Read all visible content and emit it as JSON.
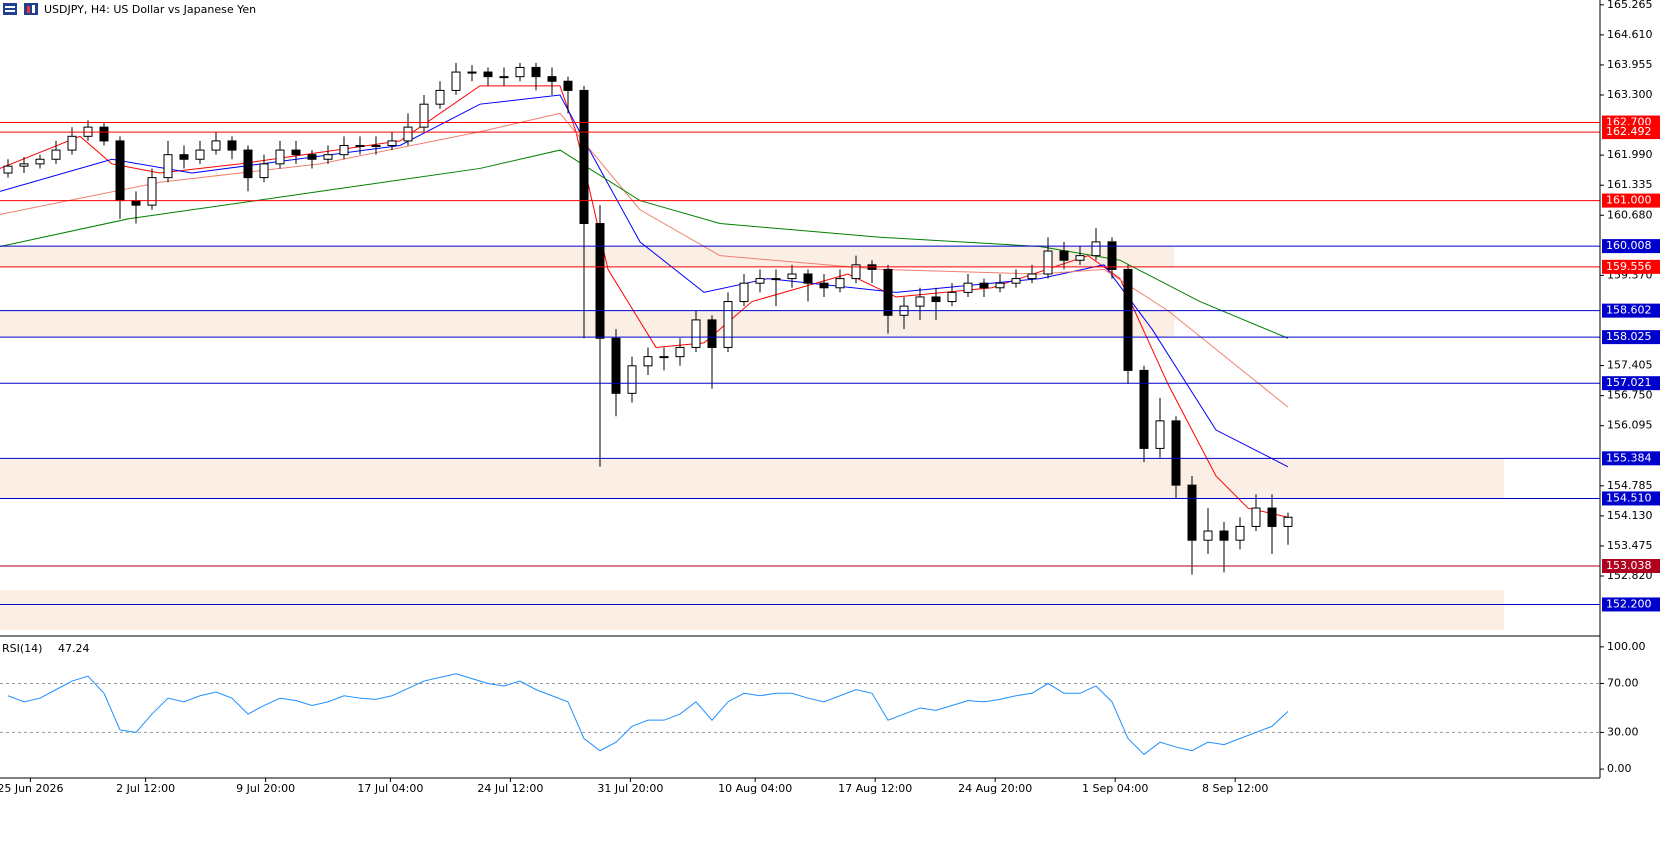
{
  "header": {
    "symbol_line": "USDJPY, H4:  US Dollar vs Japanese Yen"
  },
  "chart_data": [
    {
      "type": "candlestick",
      "open": [
        161.6,
        161.75,
        161.8,
        161.9,
        162.1,
        162.4,
        162.6,
        162.3,
        161.0,
        160.9,
        161.5,
        162.0,
        161.9,
        162.1,
        162.3,
        162.1,
        161.5,
        161.8,
        162.1,
        162.0,
        161.9,
        162.0,
        162.2,
        162.2,
        162.2,
        162.3,
        162.6,
        163.1,
        163.4,
        163.8,
        163.8,
        163.7,
        163.7,
        163.9,
        163.7,
        163.6,
        163.4,
        160.5,
        158.0,
        156.8,
        157.4,
        157.6,
        157.6,
        157.8,
        158.4,
        157.8,
        158.8,
        159.2,
        159.3,
        159.3,
        159.4,
        159.2,
        159.1,
        159.3,
        159.6,
        159.5,
        158.5,
        158.7,
        158.9,
        158.8,
        159.0,
        159.2,
        159.1,
        159.2,
        159.3,
        159.4,
        159.9,
        159.7,
        159.8,
        160.1,
        159.5,
        157.3,
        155.6,
        156.2,
        154.8,
        153.6,
        153.8,
        153.6,
        153.9,
        154.3,
        153.9
      ],
      "high": [
        161.9,
        161.95,
        162.0,
        162.3,
        162.6,
        162.75,
        162.7,
        162.4,
        161.2,
        161.7,
        162.3,
        162.2,
        162.3,
        162.5,
        162.4,
        162.2,
        162.0,
        162.3,
        162.3,
        162.1,
        162.2,
        162.4,
        162.4,
        162.4,
        162.5,
        162.9,
        163.3,
        163.6,
        164.0,
        163.95,
        163.9,
        163.9,
        164.0,
        164.0,
        163.9,
        163.7,
        163.5,
        160.9,
        158.2,
        157.6,
        157.8,
        157.8,
        158.0,
        158.6,
        158.5,
        159.0,
        159.4,
        159.5,
        159.5,
        159.6,
        159.5,
        159.4,
        159.5,
        159.8,
        159.7,
        159.6,
        158.9,
        159.1,
        159.1,
        159.2,
        159.4,
        159.3,
        159.4,
        159.5,
        159.6,
        160.2,
        160.1,
        160.0,
        160.4,
        160.2,
        159.6,
        157.4,
        156.7,
        156.3,
        155.0,
        154.3,
        154.0,
        154.1,
        154.6,
        154.6,
        154.2
      ],
      "low": [
        161.5,
        161.6,
        161.7,
        161.8,
        162.0,
        162.3,
        162.2,
        160.6,
        160.5,
        160.8,
        161.4,
        161.7,
        161.8,
        162.0,
        161.9,
        161.2,
        161.4,
        161.7,
        161.8,
        161.7,
        161.8,
        161.9,
        162.0,
        162.0,
        162.1,
        162.2,
        162.5,
        163.0,
        163.3,
        163.6,
        163.5,
        163.5,
        163.6,
        163.4,
        163.3,
        162.9,
        158.0,
        155.2,
        156.3,
        156.6,
        157.2,
        157.3,
        157.4,
        157.7,
        156.9,
        157.7,
        158.7,
        159.0,
        158.7,
        159.1,
        158.8,
        158.9,
        159.0,
        159.2,
        159.2,
        158.1,
        158.2,
        158.4,
        158.4,
        158.7,
        158.9,
        158.9,
        159.0,
        159.1,
        159.2,
        159.3,
        159.5,
        159.6,
        159.7,
        159.3,
        157.0,
        155.3,
        155.4,
        154.5,
        152.85,
        153.3,
        152.9,
        153.4,
        153.8,
        153.3,
        153.5
      ],
      "close": [
        161.75,
        161.8,
        161.9,
        162.1,
        162.4,
        162.6,
        162.3,
        161.0,
        160.9,
        161.5,
        162.0,
        161.9,
        162.1,
        162.3,
        162.1,
        161.5,
        161.8,
        162.1,
        162.0,
        161.9,
        162.0,
        162.2,
        162.2,
        162.2,
        162.3,
        162.6,
        163.1,
        163.4,
        163.8,
        163.8,
        163.7,
        163.7,
        163.9,
        163.7,
        163.6,
        163.4,
        160.5,
        158.0,
        156.8,
        157.4,
        157.6,
        157.6,
        157.8,
        158.4,
        157.8,
        158.8,
        159.2,
        159.3,
        159.3,
        159.4,
        159.2,
        159.1,
        159.3,
        159.6,
        159.5,
        158.5,
        158.7,
        158.9,
        158.8,
        159.0,
        159.2,
        159.1,
        159.2,
        159.3,
        159.4,
        159.9,
        159.7,
        159.8,
        160.1,
        159.5,
        157.3,
        155.6,
        156.2,
        154.8,
        153.6,
        153.8,
        153.6,
        153.9,
        154.3,
        153.9,
        154.1
      ],
      "xlim": [
        0,
        100
      ],
      "ylim": [
        151.6,
        165.37
      ],
      "xticks": [
        {
          "value": 1.9,
          "label": "25 Jun 2026"
        },
        {
          "value": 9.1,
          "label": "2 Jul 12:00"
        },
        {
          "value": 16.6,
          "label": "9 Jul 20:00"
        },
        {
          "value": 24.4,
          "label": "17 Jul 04:00"
        },
        {
          "value": 31.9,
          "label": "24 Jul 12:00"
        },
        {
          "value": 39.4,
          "label": "31 Jul 20:00"
        },
        {
          "value": 47.2,
          "label": "10 Aug 04:00"
        },
        {
          "value": 54.7,
          "label": "17 Aug 12:00"
        },
        {
          "value": 62.2,
          "label": "24 Aug 20:00"
        },
        {
          "value": 69.7,
          "label": "1 Sep 04:00"
        },
        {
          "value": 77.2,
          "label": "8 Sep 12:00"
        }
      ],
      "yticks": [
        165.265,
        {
          "value": 164.61,
          "label": "164.610"
        },
        163.955,
        {
          "value": 163.3,
          "label": "163.300"
        },
        {
          "value": 161.99,
          "label": "161.990"
        },
        161.335,
        {
          "value": 160.68,
          "label": "160.680"
        },
        {
          "value": 159.37,
          "label": "159.370"
        },
        157.405,
        {
          "value": 156.75,
          "label": "156.750"
        },
        156.095,
        154.785,
        {
          "value": 154.13,
          "label": "154.130"
        },
        153.475,
        {
          "value": 152.82,
          "label": "152.820"
        }
      ],
      "moving_averages": [
        {
          "color": "#ff0000",
          "x": [
            0,
            5,
            7,
            10,
            15,
            25,
            30,
            35,
            36,
            38,
            41,
            44,
            47,
            53,
            56,
            62,
            68,
            70,
            73,
            76,
            78,
            80.5
          ],
          "values": [
            161.7,
            162.4,
            161.8,
            161.6,
            161.8,
            162.3,
            163.5,
            163.5,
            162.5,
            159.5,
            157.8,
            157.9,
            158.8,
            159.4,
            158.9,
            159.1,
            159.8,
            159.3,
            157.0,
            155.0,
            154.3,
            154.1
          ]
        },
        {
          "color": "#0000ff",
          "x": [
            0,
            7,
            12,
            25,
            30,
            35,
            37,
            40,
            44,
            48,
            56,
            65,
            69,
            72,
            76,
            80.5
          ],
          "values": [
            161.2,
            161.9,
            161.6,
            162.2,
            163.1,
            163.3,
            162.0,
            160.1,
            159.0,
            159.3,
            159.0,
            159.3,
            159.6,
            158.2,
            156.0,
            155.2
          ]
        },
        {
          "color": "#f08070",
          "x": [
            0,
            10,
            20,
            30,
            35,
            40,
            45,
            55,
            65,
            69,
            73,
            80.5
          ],
          "values": [
            160.7,
            161.4,
            161.8,
            162.5,
            162.9,
            160.8,
            159.8,
            159.5,
            159.4,
            159.5,
            158.6,
            156.5
          ]
        },
        {
          "color": "#008000",
          "x": [
            0,
            8,
            20,
            30,
            35,
            40,
            45,
            55,
            65,
            70,
            75,
            80.5
          ],
          "values": [
            160.0,
            160.6,
            161.2,
            161.7,
            162.1,
            161.0,
            160.5,
            160.2,
            160.0,
            159.7,
            158.8,
            158.0
          ]
        }
      ],
      "levels": [
        {
          "value": 162.7,
          "label": "162.700",
          "color": "#ff0000"
        },
        {
          "value": 162.492,
          "color": "#ff0000"
        },
        {
          "value": 161.0,
          "label": "161.000",
          "color": "#ff0000"
        },
        {
          "value": 160.008,
          "color": "#0000cd"
        },
        {
          "value": 159.556,
          "color": "#ff0000"
        },
        {
          "value": 158.602,
          "color": "#0000cd"
        },
        {
          "value": 158.025,
          "color": "#0000cd"
        },
        {
          "value": 157.021,
          "color": "#0000cd"
        },
        {
          "value": 155.384,
          "color": "#0000cd"
        },
        {
          "value": 154.51,
          "label": "154.510",
          "color": "#0000cd"
        },
        {
          "value": 153.038,
          "color": "#b00020"
        },
        {
          "value": 152.2,
          "label": "152.200",
          "color": "#0000cd"
        }
      ],
      "zones": [
        {
          "range": [
            159.556,
            160.008
          ],
          "x_end": 73.4
        },
        {
          "range": [
            158.025,
            158.602
          ],
          "x_end": 73.4
        },
        {
          "range": [
            154.51,
            155.384
          ],
          "x_end": 94
        },
        {
          "range": [
            151.65,
            152.52
          ],
          "x_end": 94
        }
      ]
    },
    {
      "type": "line",
      "title": "RSI(14)",
      "color": "#1e90ff",
      "values": [
        60,
        55,
        58,
        65,
        72,
        76,
        62,
        32,
        30,
        45,
        58,
        55,
        60,
        63,
        58,
        45,
        52,
        58,
        56,
        52,
        55,
        60,
        58,
        57,
        60,
        66,
        72,
        75,
        78,
        74,
        70,
        68,
        72,
        65,
        60,
        55,
        25,
        15,
        22,
        35,
        40,
        40,
        45,
        55,
        40,
        55,
        62,
        60,
        62,
        62,
        58,
        55,
        60,
        65,
        62,
        40,
        45,
        50,
        48,
        52,
        56,
        55,
        57,
        60,
        62,
        70,
        62,
        62,
        68,
        55,
        25,
        12,
        22,
        18,
        15,
        22,
        20,
        25,
        30,
        35,
        47.24
      ],
      "xlim": [
        0,
        100
      ],
      "ylim": [
        -7.3,
        105.6
      ],
      "yticks": [
        {
          "value": 100,
          "label": "100.00"
        },
        {
          "value": 70,
          "label": "70.00"
        },
        {
          "value": 30,
          "label": "30.00"
        },
        {
          "value": 0,
          "label": "0.00"
        }
      ],
      "levels": [
        70,
        30
      ]
    }
  ]
}
